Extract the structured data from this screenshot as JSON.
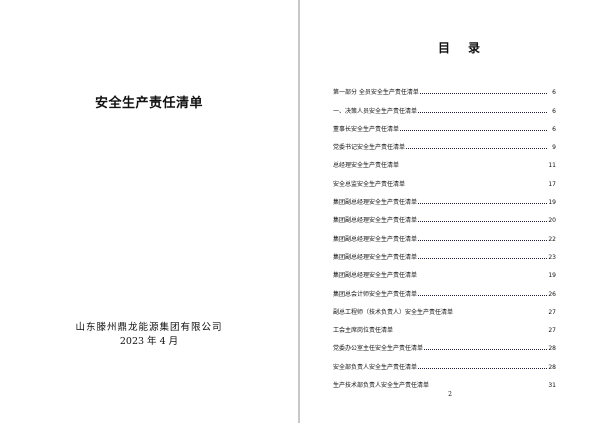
{
  "cover": {
    "title": "安全生产责任清单",
    "company": "山东滕州鼎龙能源集团有限公司",
    "date": "2023 年 4 月"
  },
  "toc": {
    "title": "目录",
    "page_number": "2",
    "entries": [
      {
        "title": "第一部分 全员安全生产责任清单",
        "page": "6",
        "dots": true
      },
      {
        "title": "一、决策人员安全生产责任清单",
        "page": "6",
        "dots": true
      },
      {
        "title": "董事长安全生产责任清单",
        "page": "6",
        "dots": true
      },
      {
        "title": "党委书记安全生产责任清单",
        "page": "9",
        "dots": true
      },
      {
        "title": "总经理安全生产责任清单",
        "page": "11",
        "dots": false
      },
      {
        "title": "安全总监安全生产责任清单",
        "page": "17",
        "dots": false
      },
      {
        "title": "集团副总经理安全生产责任清单",
        "page": "19",
        "dots": true
      },
      {
        "title": "集团副总经理安全生产责任清单",
        "page": "20",
        "dots": true
      },
      {
        "title": "集团副总经理安全生产责任清单",
        "page": "22",
        "dots": true
      },
      {
        "title": "集团副总经理安全生产责任清单",
        "page": "23",
        "dots": true
      },
      {
        "title": "集团副总经理安全生产责任清单",
        "page": "19",
        "dots": false
      },
      {
        "title": "集团总会计师安全生产责任清单",
        "page": "26",
        "dots": true
      },
      {
        "title": "副总工程师（技术负责人）安全生产责任清单",
        "page": "27",
        "dots": false
      },
      {
        "title": "工会主席岗位责任清单",
        "page": "27",
        "dots": false
      },
      {
        "title": "党委办公室主任安全生产责任清单",
        "page": "28",
        "dots": true
      },
      {
        "title": "安全部负责人安全生产责任清单",
        "page": "28",
        "dots": true
      },
      {
        "title": "生产技术部负责人安全生产责任清单",
        "page": "31",
        "dots": false
      }
    ]
  }
}
